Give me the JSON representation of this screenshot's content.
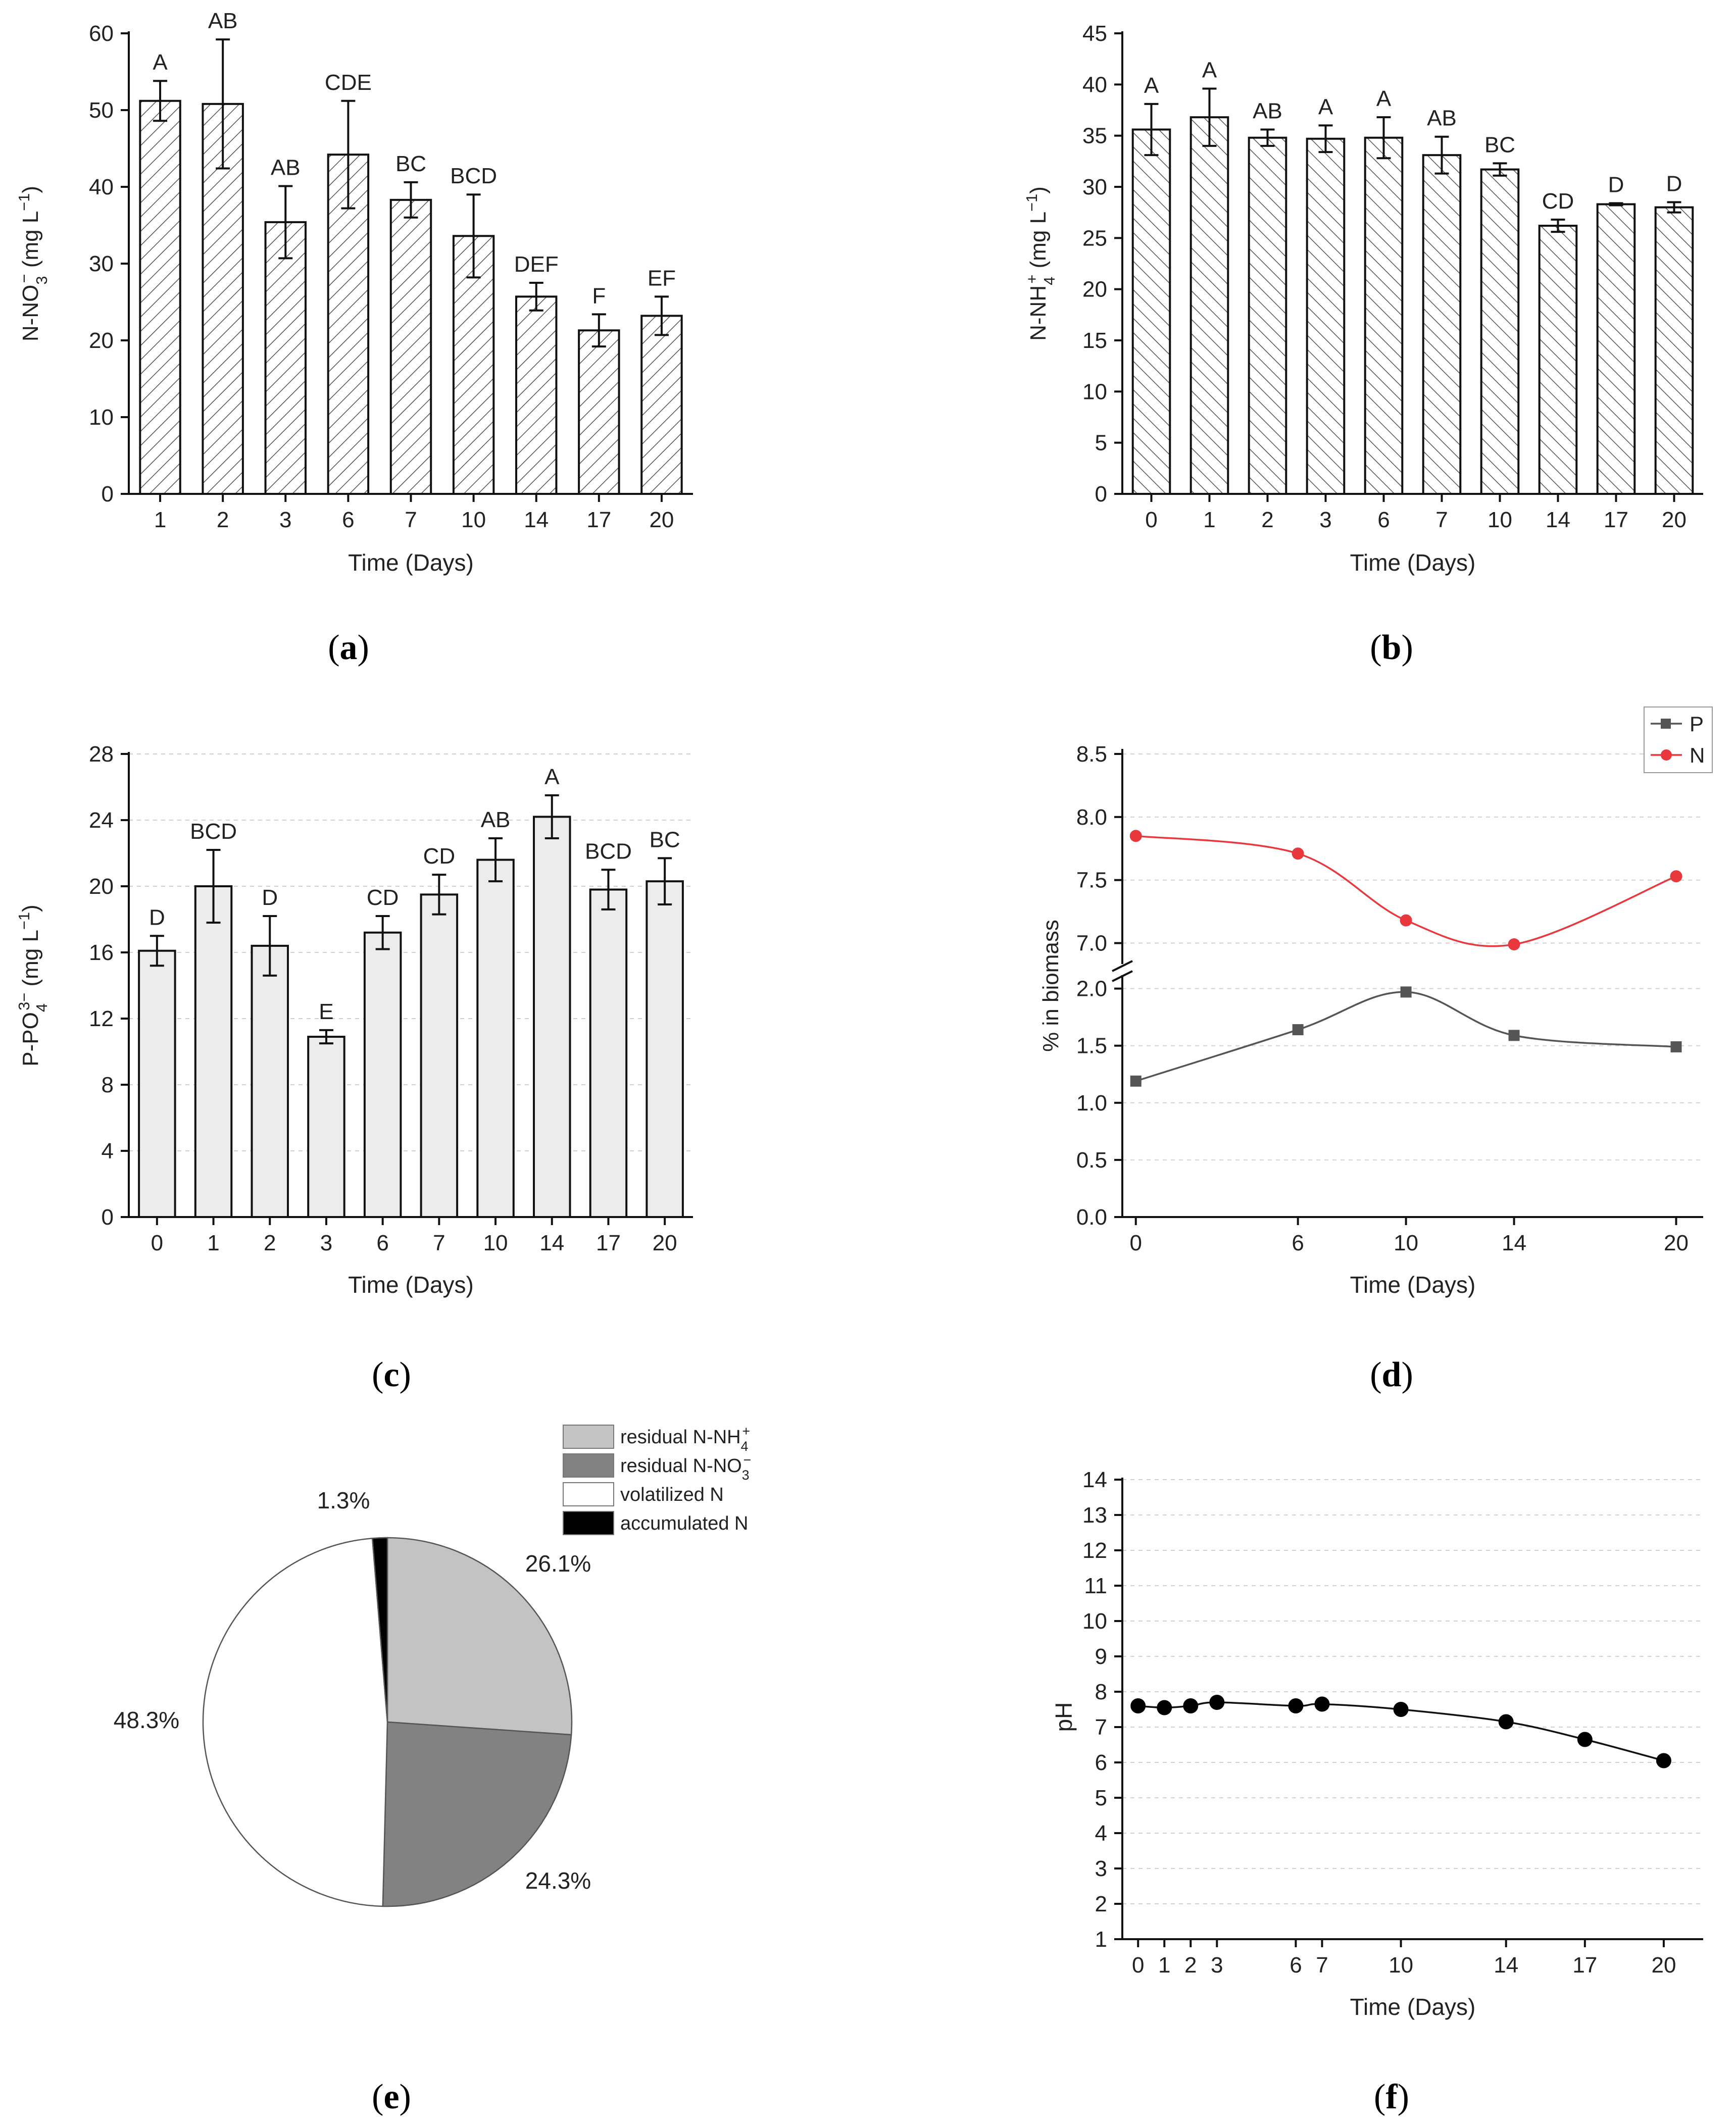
{
  "chart_data": [
    {
      "panel": "a",
      "type": "bar",
      "xlabel": "Time (Days)",
      "ylabel_parts": [
        "N-NO",
        "3",
        "−",
        " (mg L",
        "−1",
        ")"
      ],
      "categories": [
        "1",
        "2",
        "3",
        "6",
        "7",
        "10",
        "14",
        "17",
        "20"
      ],
      "values": [
        51.2,
        50.8,
        35.4,
        44.2,
        38.3,
        33.6,
        25.7,
        21.3,
        23.2
      ],
      "errors": [
        2.6,
        8.4,
        4.7,
        7.0,
        2.3,
        5.4,
        1.8,
        2.1,
        2.5
      ],
      "letters": [
        "A",
        "AB",
        "AB",
        "CDE",
        "BC",
        "BCD",
        "DEF",
        "F",
        "EF"
      ],
      "ylim": [
        0,
        60
      ],
      "yticks": [
        0,
        10,
        20,
        30,
        40,
        50,
        60
      ],
      "fill": "hatch-forward"
    },
    {
      "panel": "b",
      "type": "bar",
      "xlabel": "Time (Days)",
      "ylabel_parts": [
        "N-NH",
        "4",
        "+",
        " (mg L",
        "−1",
        ")"
      ],
      "categories": [
        "0",
        "1",
        "2",
        "3",
        "6",
        "7",
        "10",
        "14",
        "17",
        "20"
      ],
      "values": [
        35.6,
        36.8,
        34.8,
        34.7,
        34.8,
        33.1,
        31.7,
        26.2,
        28.3,
        28.0
      ],
      "errors": [
        2.5,
        2.8,
        0.8,
        1.3,
        2.0,
        1.8,
        0.6,
        0.6,
        0.1,
        0.5
      ],
      "letters": [
        "A",
        "A",
        "AB",
        "A",
        "A",
        "AB",
        "BC",
        "CD",
        "D",
        "D"
      ],
      "ylim": [
        0,
        45
      ],
      "yticks": [
        0,
        5,
        10,
        15,
        20,
        25,
        30,
        35,
        40,
        45
      ],
      "fill": "hatch-back"
    },
    {
      "panel": "c",
      "type": "bar",
      "xlabel": "Time (Days)",
      "ylabel_parts": [
        "P-PO",
        "4",
        "3−",
        " (mg L",
        "−1",
        ")"
      ],
      "categories": [
        "0",
        "1",
        "2",
        "3",
        "6",
        "7",
        "10",
        "14",
        "17",
        "20"
      ],
      "values": [
        16.1,
        20.0,
        16.4,
        10.9,
        17.2,
        19.5,
        21.6,
        24.2,
        19.8,
        20.3
      ],
      "errors": [
        0.9,
        2.2,
        1.8,
        0.4,
        1.0,
        1.2,
        1.3,
        1.3,
        1.2,
        1.4
      ],
      "letters": [
        "D",
        "BCD",
        "D",
        "E",
        "CD",
        "CD",
        "AB",
        "A",
        "BCD",
        "BC"
      ],
      "ylim": [
        0,
        28
      ],
      "yticks": [
        0,
        4,
        8,
        12,
        16,
        20,
        24,
        28
      ],
      "fill": "#ececec"
    },
    {
      "panel": "d",
      "type": "line",
      "xlabel": "Time (Days)",
      "ylabel": "% in biomass",
      "x": [
        0,
        6,
        10,
        14,
        20
      ],
      "xticks": [
        0,
        6,
        10,
        14,
        20
      ],
      "xlim": [
        -0.5,
        21
      ],
      "series": [
        {
          "name": "P",
          "values": [
            1.19,
            1.64,
            1.97,
            1.59,
            1.49
          ],
          "color": "#555555",
          "marker": "square"
        },
        {
          "name": "N",
          "values": [
            7.85,
            7.71,
            7.18,
            6.99,
            7.53
          ],
          "color": "#e8383d",
          "marker": "circle"
        }
      ],
      "axis_break": {
        "lower_ylim": [
          0,
          2.1
        ],
        "upper_ylim": [
          6.85,
          8.5
        ]
      },
      "yticks_lower": [
        "0.0",
        "0.5",
        "1.0",
        "1.5",
        "2.0"
      ],
      "yticks_upper": [
        "7.0",
        "7.5",
        "8.0",
        "8.5"
      ],
      "legend_position": "top-right"
    },
    {
      "panel": "e",
      "type": "pie",
      "slices": [
        {
          "label_parts": [
            "residual N-NH",
            "4",
            "+"
          ],
          "value": 26.1,
          "pct_label": "26.1%",
          "color": "#c3c3c3"
        },
        {
          "label_parts": [
            "residual N-NO",
            "3",
            "−"
          ],
          "value": 24.3,
          "pct_label": "24.3%",
          "color": "#828282"
        },
        {
          "label_parts": [
            "volatilized N",
            "",
            ""
          ],
          "value": 48.3,
          "pct_label": "48.3%",
          "color": "#ffffff"
        },
        {
          "label_parts": [
            "accumulated N",
            "",
            ""
          ],
          "value": 1.3,
          "pct_label": "1.3%",
          "color": "#000000"
        }
      ],
      "legend_position": "top-right"
    },
    {
      "panel": "f",
      "type": "line",
      "xlabel": "Time (Days)",
      "ylabel": "pH",
      "x": [
        0,
        1,
        2,
        3,
        6,
        7,
        10,
        14,
        17,
        20
      ],
      "y": [
        7.6,
        7.55,
        7.6,
        7.7,
        7.6,
        7.65,
        7.5,
        7.15,
        6.65,
        6.05
      ],
      "xticks": [
        0,
        1,
        2,
        3,
        6,
        7,
        10,
        14,
        17,
        20
      ],
      "xlim": [
        -0.6,
        21.5
      ],
      "ylim": [
        1,
        14
      ],
      "yticks": [
        1,
        2,
        3,
        4,
        5,
        6,
        7,
        8,
        9,
        10,
        11,
        12,
        13,
        14
      ],
      "grid": true
    }
  ],
  "panel_labels": [
    "a",
    "b",
    "c",
    "d",
    "e",
    "f"
  ]
}
